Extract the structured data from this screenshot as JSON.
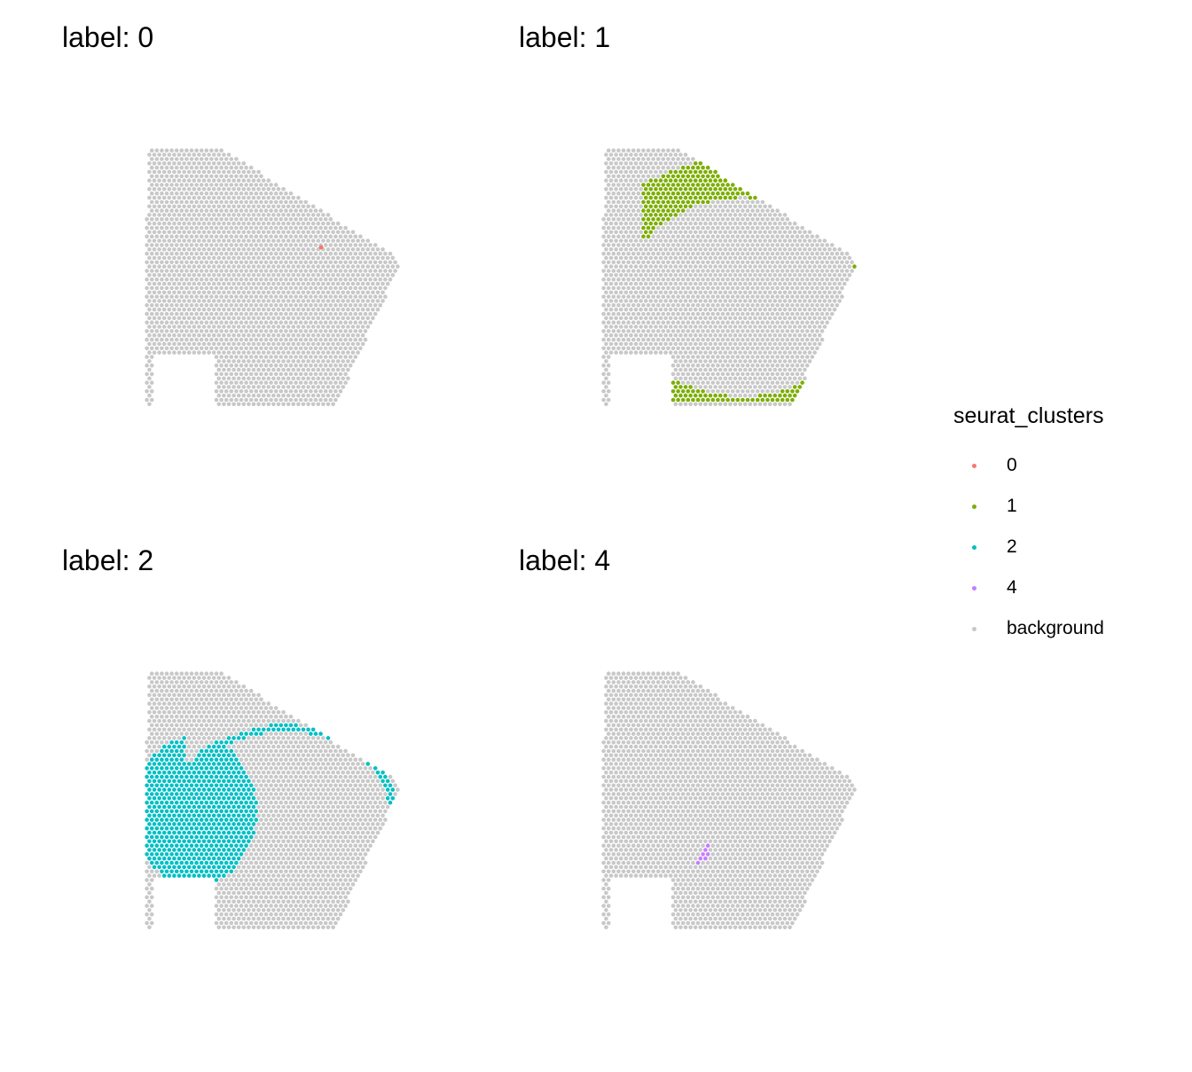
{
  "chart_data": {
    "type": "scatter",
    "panels": [
      {
        "title": "label: 0",
        "cluster": "0"
      },
      {
        "title": "label: 1",
        "cluster": "1"
      },
      {
        "title": "label: 2",
        "cluster": "2"
      },
      {
        "title": "label: 4",
        "cluster": "4"
      }
    ],
    "legend": {
      "title": "seurat_clusters",
      "position": "right",
      "entries": [
        {
          "label": "0",
          "color": "#F8766D"
        },
        {
          "label": "1",
          "color": "#7CAE00"
        },
        {
          "label": "2",
          "color": "#00BFC4"
        },
        {
          "label": "4",
          "color": "#C77CFF"
        },
        {
          "label": "background",
          "color": "#C8C8C8"
        }
      ]
    },
    "axes": "none",
    "grid": false
  },
  "colors": {
    "0": "#F8766D",
    "1": "#7CAE00",
    "2": "#00BFC4",
    "4": "#C77CFF",
    "background": "#C8C8C8"
  }
}
